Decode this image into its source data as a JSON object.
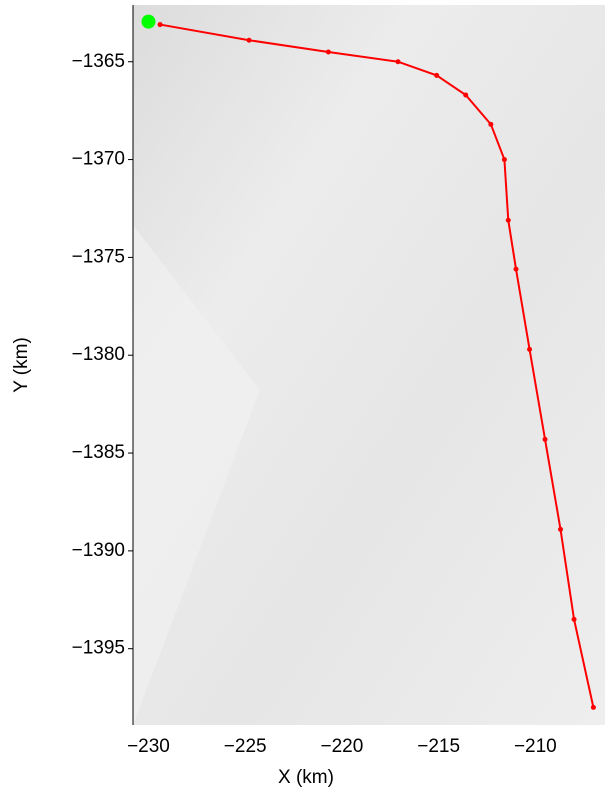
{
  "chart_data": {
    "type": "line",
    "xlabel": "X (km)",
    "ylabel": "Y (km)",
    "x": [
      -229.4,
      -224.8,
      -220.7,
      -217.1,
      -215.1,
      -213.6,
      -212.3,
      -211.6,
      -211.4,
      -211.0,
      -210.3,
      -209.5,
      -208.7,
      -208.0,
      -207.0
    ],
    "values": [
      -1363.1,
      -1363.9,
      -1364.5,
      -1365.0,
      -1365.7,
      -1366.7,
      -1368.2,
      -1370.0,
      -1373.1,
      -1375.6,
      -1379.7,
      -1384.3,
      -1388.9,
      -1393.5,
      -1398.0
    ],
    "color": "#ff0000",
    "start_point": {
      "x": -230.0,
      "y": -1362.95,
      "color": "#00ff00"
    },
    "xlim": [
      -230.8,
      -206.4
    ],
    "ylim": [
      -1398.9,
      -1362.1
    ],
    "xticks": [
      {
        "value": -230,
        "label": "−230"
      },
      {
        "value": -225,
        "label": "−225"
      },
      {
        "value": -220,
        "label": "−220"
      },
      {
        "value": -215,
        "label": "−215"
      },
      {
        "value": -210,
        "label": "−210"
      }
    ],
    "yticks": [
      {
        "value": -1365,
        "label": "−1365"
      },
      {
        "value": -1370,
        "label": "−1370"
      },
      {
        "value": -1375,
        "label": "−1375"
      },
      {
        "value": -1380,
        "label": "−1380"
      },
      {
        "value": -1385,
        "label": "−1385"
      },
      {
        "value": -1390,
        "label": "−1390"
      },
      {
        "value": -1395,
        "label": "−1395"
      }
    ]
  }
}
